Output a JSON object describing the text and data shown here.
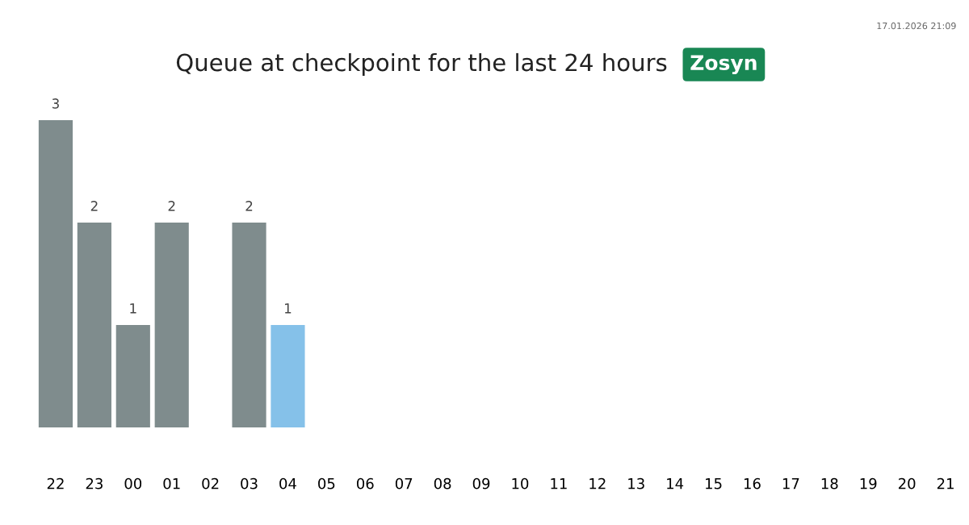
{
  "chart_data": {
    "type": "bar",
    "title": "Queue at checkpoint for the last 24 hours",
    "subtitle": "Zosyn",
    "categories": [
      "22",
      "23",
      "00",
      "01",
      "02",
      "03",
      "04",
      "05",
      "06",
      "07",
      "08",
      "09",
      "10",
      "11",
      "12",
      "13",
      "14",
      "15",
      "16",
      "17",
      "18",
      "19",
      "20",
      "21"
    ],
    "values": [
      3,
      2,
      1,
      2,
      null,
      2,
      1,
      null,
      null,
      null,
      null,
      null,
      null,
      null,
      null,
      null,
      null,
      null,
      null,
      null,
      null,
      null,
      null,
      null
    ],
    "colors": [
      "#7f8c8d",
      "#7f8c8d",
      "#7f8c8d",
      "#7f8c8d",
      "#7f8c8d",
      "#7f8c8d",
      "#85c1e9",
      "#7f8c8d",
      "#7f8c8d",
      "#7f8c8d",
      "#7f8c8d",
      "#7f8c8d",
      "#7f8c8d",
      "#7f8c8d",
      "#7f8c8d",
      "#7f8c8d",
      "#7f8c8d",
      "#7f8c8d",
      "#7f8c8d",
      "#7f8c8d",
      "#7f8c8d",
      "#7f8c8d",
      "#7f8c8d",
      "#7f8c8d"
    ],
    "data_labels": true,
    "tick_labels": "x",
    "grid": false,
    "annotations": [
      "17.01.2026 21:09"
    ]
  }
}
